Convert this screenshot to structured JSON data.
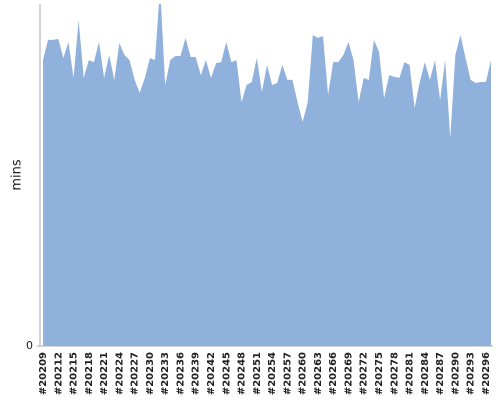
{
  "chart_data": {
    "type": "area",
    "y_label": "mins",
    "color": "#8fb1db",
    "categories": [
      "#20209",
      null,
      null,
      "#20212",
      null,
      null,
      "#20215",
      null,
      null,
      "#20218",
      null,
      null,
      "#20221",
      null,
      null,
      "#20224",
      null,
      null,
      "#20227",
      null,
      null,
      "#20230",
      null,
      null,
      "#20233",
      null,
      null,
      "#20236",
      null,
      null,
      "#20239",
      null,
      null,
      "#20242",
      null,
      null,
      "#20245",
      null,
      null,
      "#20248",
      null,
      null,
      "#20251",
      null,
      null,
      "#20254",
      null,
      null,
      "#20257",
      null,
      null,
      "#20260",
      null,
      null,
      "#20263",
      null,
      null,
      "#20266",
      null,
      null,
      "#20269",
      null,
      null,
      "#20272",
      null,
      null,
      "#20275",
      null,
      null,
      "#20278",
      null,
      null,
      "#20281",
      null,
      null,
      "#20284",
      null,
      null,
      "#20287",
      null,
      null,
      "#20290",
      null,
      null,
      "#20293",
      null,
      null,
      "#20296",
      null
    ],
    "values": [
      83.6,
      89.5,
      89.5,
      89.8,
      84.2,
      88.9,
      78.4,
      95.3,
      78.4,
      83.6,
      83.0,
      88.9,
      78.4,
      85.1,
      77.8,
      88.6,
      85.1,
      83.6,
      77.8,
      74.0,
      78.4,
      84.2,
      83.6,
      105,
      76.3,
      83.6,
      84.8,
      84.8,
      90.1,
      84.5,
      84.5,
      79.2,
      83.6,
      78.4,
      82.7,
      83.0,
      88.9,
      83.0,
      83.6,
      71.3,
      76.3,
      77.2,
      84.2,
      74.3,
      82.2,
      76.3,
      76.9,
      82.2,
      77.8,
      77.8,
      71.3,
      65.5,
      71.3,
      90.9,
      90.1,
      90.6,
      73.4,
      83.0,
      83.0,
      85.1,
      88.9,
      83.6,
      71.3,
      78.4,
      77.8,
      89.5,
      86.0,
      72.4,
      79.2,
      78.7,
      78.4,
      83.0,
      82.2,
      69.6,
      77.2,
      83.0,
      77.8,
      83.6,
      71.9,
      83.6,
      60.8,
      85.1,
      90.9,
      84.2,
      77.8,
      76.9,
      77.2,
      77.2,
      83.6
    ],
    "ylim": [
      0,
      100
    ],
    "yticks": [
      0
    ]
  }
}
